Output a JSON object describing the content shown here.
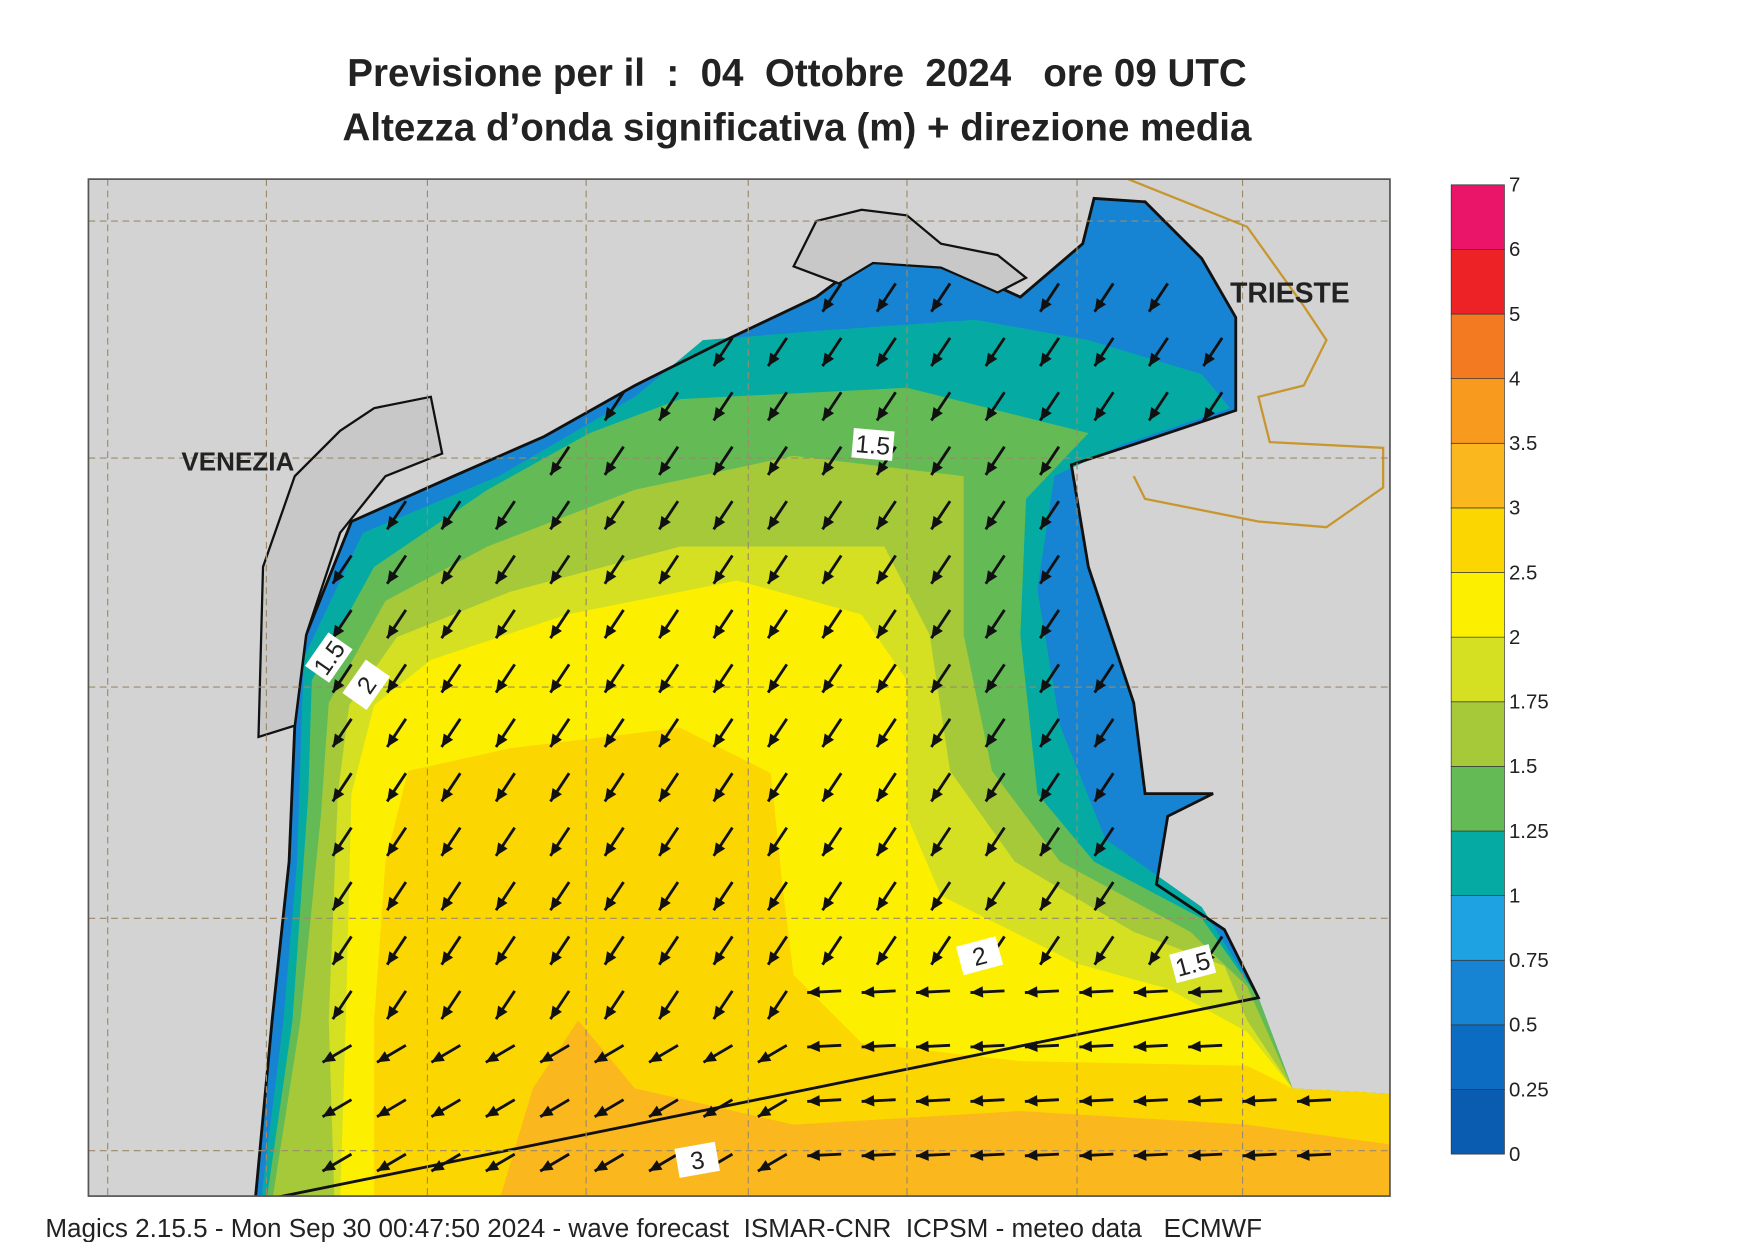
{
  "header": {
    "title": "Previsione per il  :  04  Ottobre  2024   ore 09 UTC",
    "subtitle": "Altezza d’onda significativa (m) + direzione media"
  },
  "map": {
    "places": [
      "VENEZIA",
      "TRIESTE"
    ],
    "contour_labels": [
      1.5,
      1.5,
      2,
      2,
      1.5,
      3
    ]
  },
  "colorbar": {
    "levels": [
      0,
      0.25,
      0.5,
      0.75,
      1,
      1.25,
      1.5,
      1.75,
      2,
      2.5,
      3,
      3.5,
      4,
      5,
      6,
      7
    ],
    "colors": [
      "#0a5cb0",
      "#0c6cc2",
      "#1684d2",
      "#1fa2e2",
      "#05aba2",
      "#64bb55",
      "#a6c93a",
      "#d4e021",
      "#fcf000",
      "#fcd600",
      "#fbb81e",
      "#f79a1e",
      "#f47a22",
      "#ec2227",
      "#ea1568"
    ]
  },
  "footer": "Magics 2.15.5 - Mon Sep 30 00:47:50 2024 - wave forecast  ISMAR-CNR  ICPSM - meteo data   ECMWF"
}
